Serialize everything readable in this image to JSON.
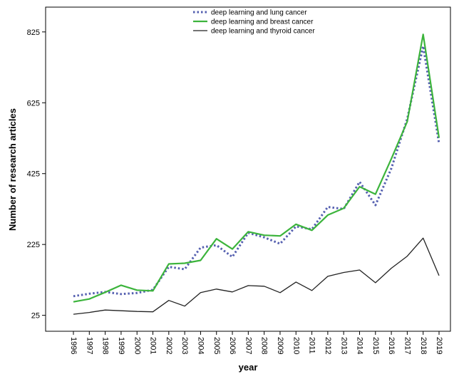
{
  "chart_data": {
    "type": "line",
    "xlabel": "year",
    "ylabel": "Number of research articles",
    "categories": [
      "1996",
      "1997",
      "1998",
      "1999",
      "2000",
      "2001",
      "2002",
      "2003",
      "2004",
      "2005",
      "2006",
      "2007",
      "2008",
      "2009",
      "2010",
      "2011",
      "2012",
      "2013",
      "2014",
      "2015",
      "2016",
      "2017",
      "2018",
      "2019"
    ],
    "yticks": [
      25,
      225,
      425,
      625,
      825
    ],
    "ylim": [
      -20,
      895
    ],
    "grid": false,
    "legend_position": "top-center",
    "series": [
      {
        "name": "deep learning and lung cancer",
        "color": "#5560b0",
        "style": "dotted",
        "values": [
          79,
          86,
          91,
          85,
          88,
          97,
          162,
          155,
          216,
          223,
          190,
          258,
          245,
          227,
          276,
          268,
          331,
          325,
          402,
          336,
          440,
          580,
          785,
          510
        ]
      },
      {
        "name": "deep learning and breast cancer",
        "color": "#3cb43c",
        "style": "solid",
        "values": [
          63,
          71,
          90,
          110,
          96,
          94,
          170,
          172,
          180,
          241,
          212,
          261,
          251,
          249,
          282,
          265,
          308,
          327,
          388,
          367,
          467,
          572,
          818,
          526
        ]
      },
      {
        "name": "deep learning and thyroid cancer",
        "color": "#222222",
        "style": "solid",
        "values": [
          28,
          33,
          40,
          38,
          36,
          35,
          67,
          51,
          89,
          99,
          91,
          109,
          107,
          89,
          119,
          95,
          135,
          146,
          153,
          117,
          158,
          192,
          243,
          137
        ]
      }
    ]
  }
}
